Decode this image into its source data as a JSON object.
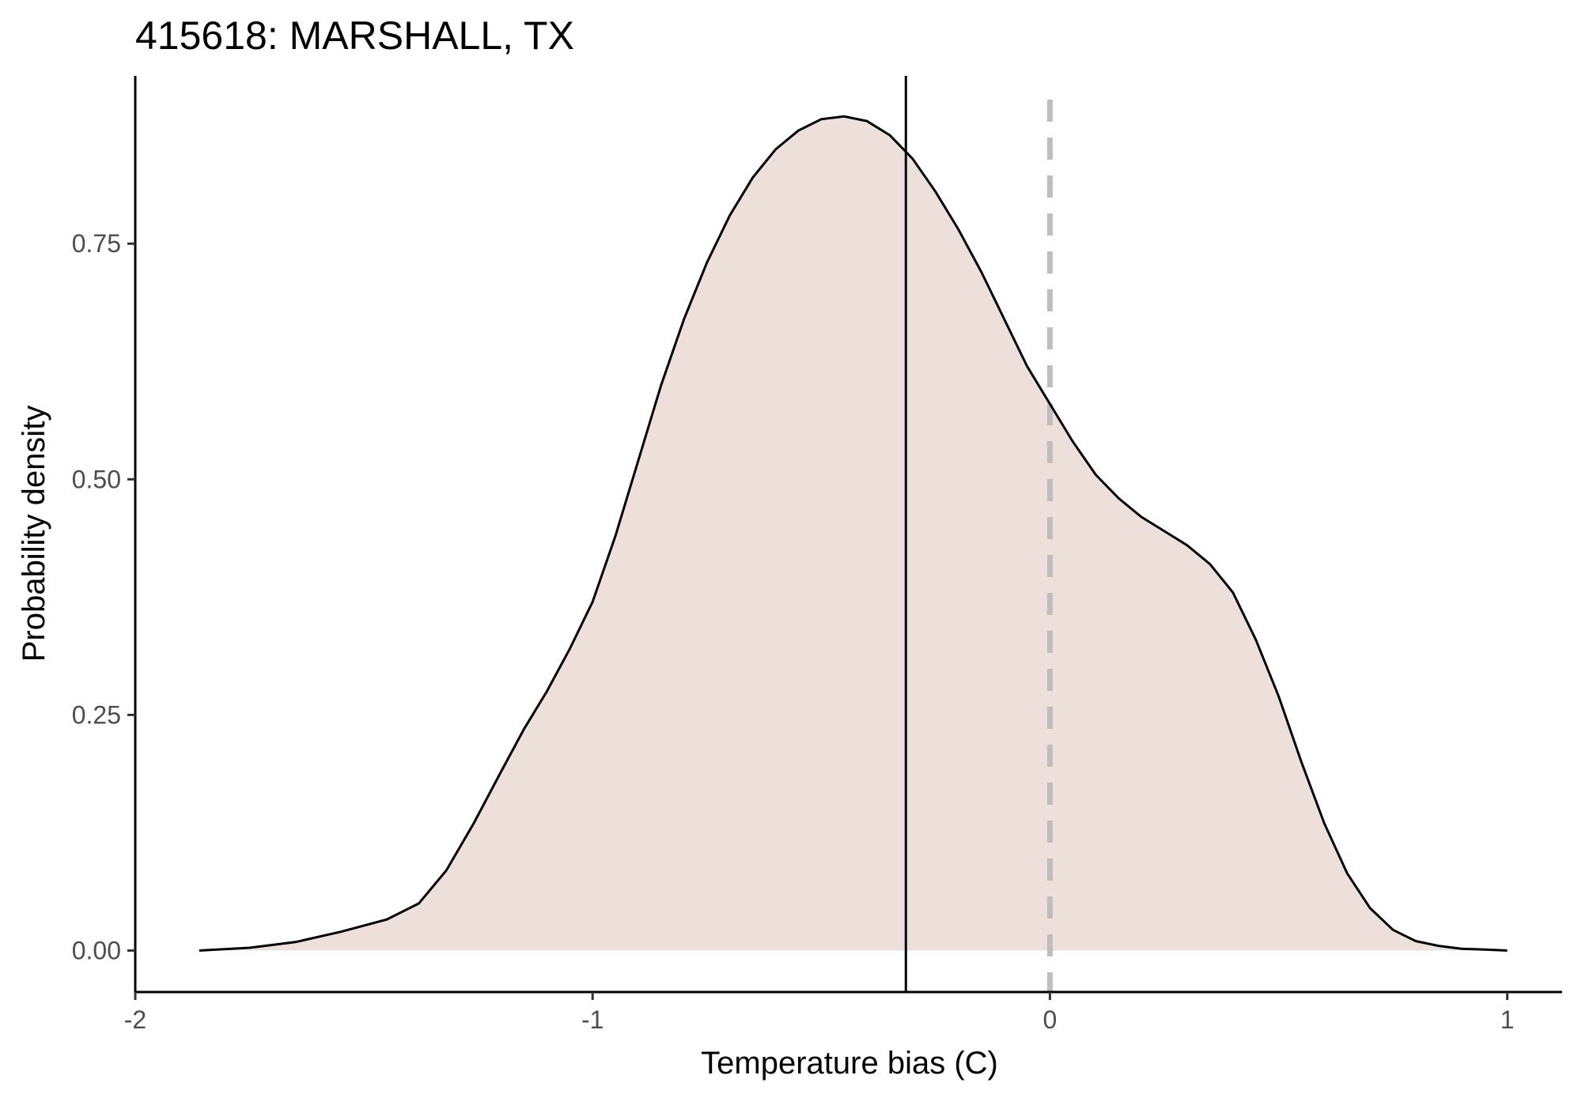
{
  "chart_data": {
    "type": "area",
    "title": "415618: MARSHALL, TX",
    "xlabel": "Temperature bias (C)",
    "ylabel": "Probability density",
    "xlim": [
      -2.0,
      1.12
    ],
    "ylim": [
      -0.044,
      0.928
    ],
    "x_ticks": [
      -2,
      -1,
      0,
      1
    ],
    "x_tick_labels": [
      "-2",
      "-1",
      "0",
      "1"
    ],
    "y_ticks": [
      0,
      0.25,
      0.5,
      0.75
    ],
    "y_tick_labels": [
      "0.00",
      "0.25",
      "0.50",
      "0.75"
    ],
    "grid": false,
    "fill_color": "#ede0db",
    "line_color": "#000000",
    "density_x": [
      -1.86,
      -1.75,
      -1.65,
      -1.55,
      -1.45,
      -1.38,
      -1.32,
      -1.26,
      -1.2,
      -1.15,
      -1.1,
      -1.05,
      -1.0,
      -0.95,
      -0.9,
      -0.85,
      -0.8,
      -0.75,
      -0.7,
      -0.65,
      -0.6,
      -0.55,
      -0.5,
      -0.45,
      -0.4,
      -0.35,
      -0.3,
      -0.25,
      -0.2,
      -0.15,
      -0.1,
      -0.05,
      0.0,
      0.05,
      0.1,
      0.15,
      0.2,
      0.25,
      0.3,
      0.35,
      0.4,
      0.45,
      0.5,
      0.55,
      0.6,
      0.65,
      0.7,
      0.75,
      0.8,
      0.85,
      0.9,
      0.95,
      1.0
    ],
    "density_y": [
      0.0,
      0.003,
      0.009,
      0.02,
      0.033,
      0.05,
      0.085,
      0.135,
      0.19,
      0.235,
      0.275,
      0.32,
      0.37,
      0.44,
      0.52,
      0.6,
      0.67,
      0.73,
      0.78,
      0.82,
      0.85,
      0.87,
      0.882,
      0.885,
      0.88,
      0.865,
      0.84,
      0.805,
      0.765,
      0.72,
      0.67,
      0.62,
      0.58,
      0.54,
      0.505,
      0.48,
      0.46,
      0.445,
      0.43,
      0.41,
      0.38,
      0.33,
      0.27,
      0.2,
      0.135,
      0.082,
      0.045,
      0.022,
      0.01,
      0.005,
      0.002,
      0.001,
      0.0
    ],
    "vline_solid_x": -0.315,
    "vline_dashed_x": 0.0
  }
}
